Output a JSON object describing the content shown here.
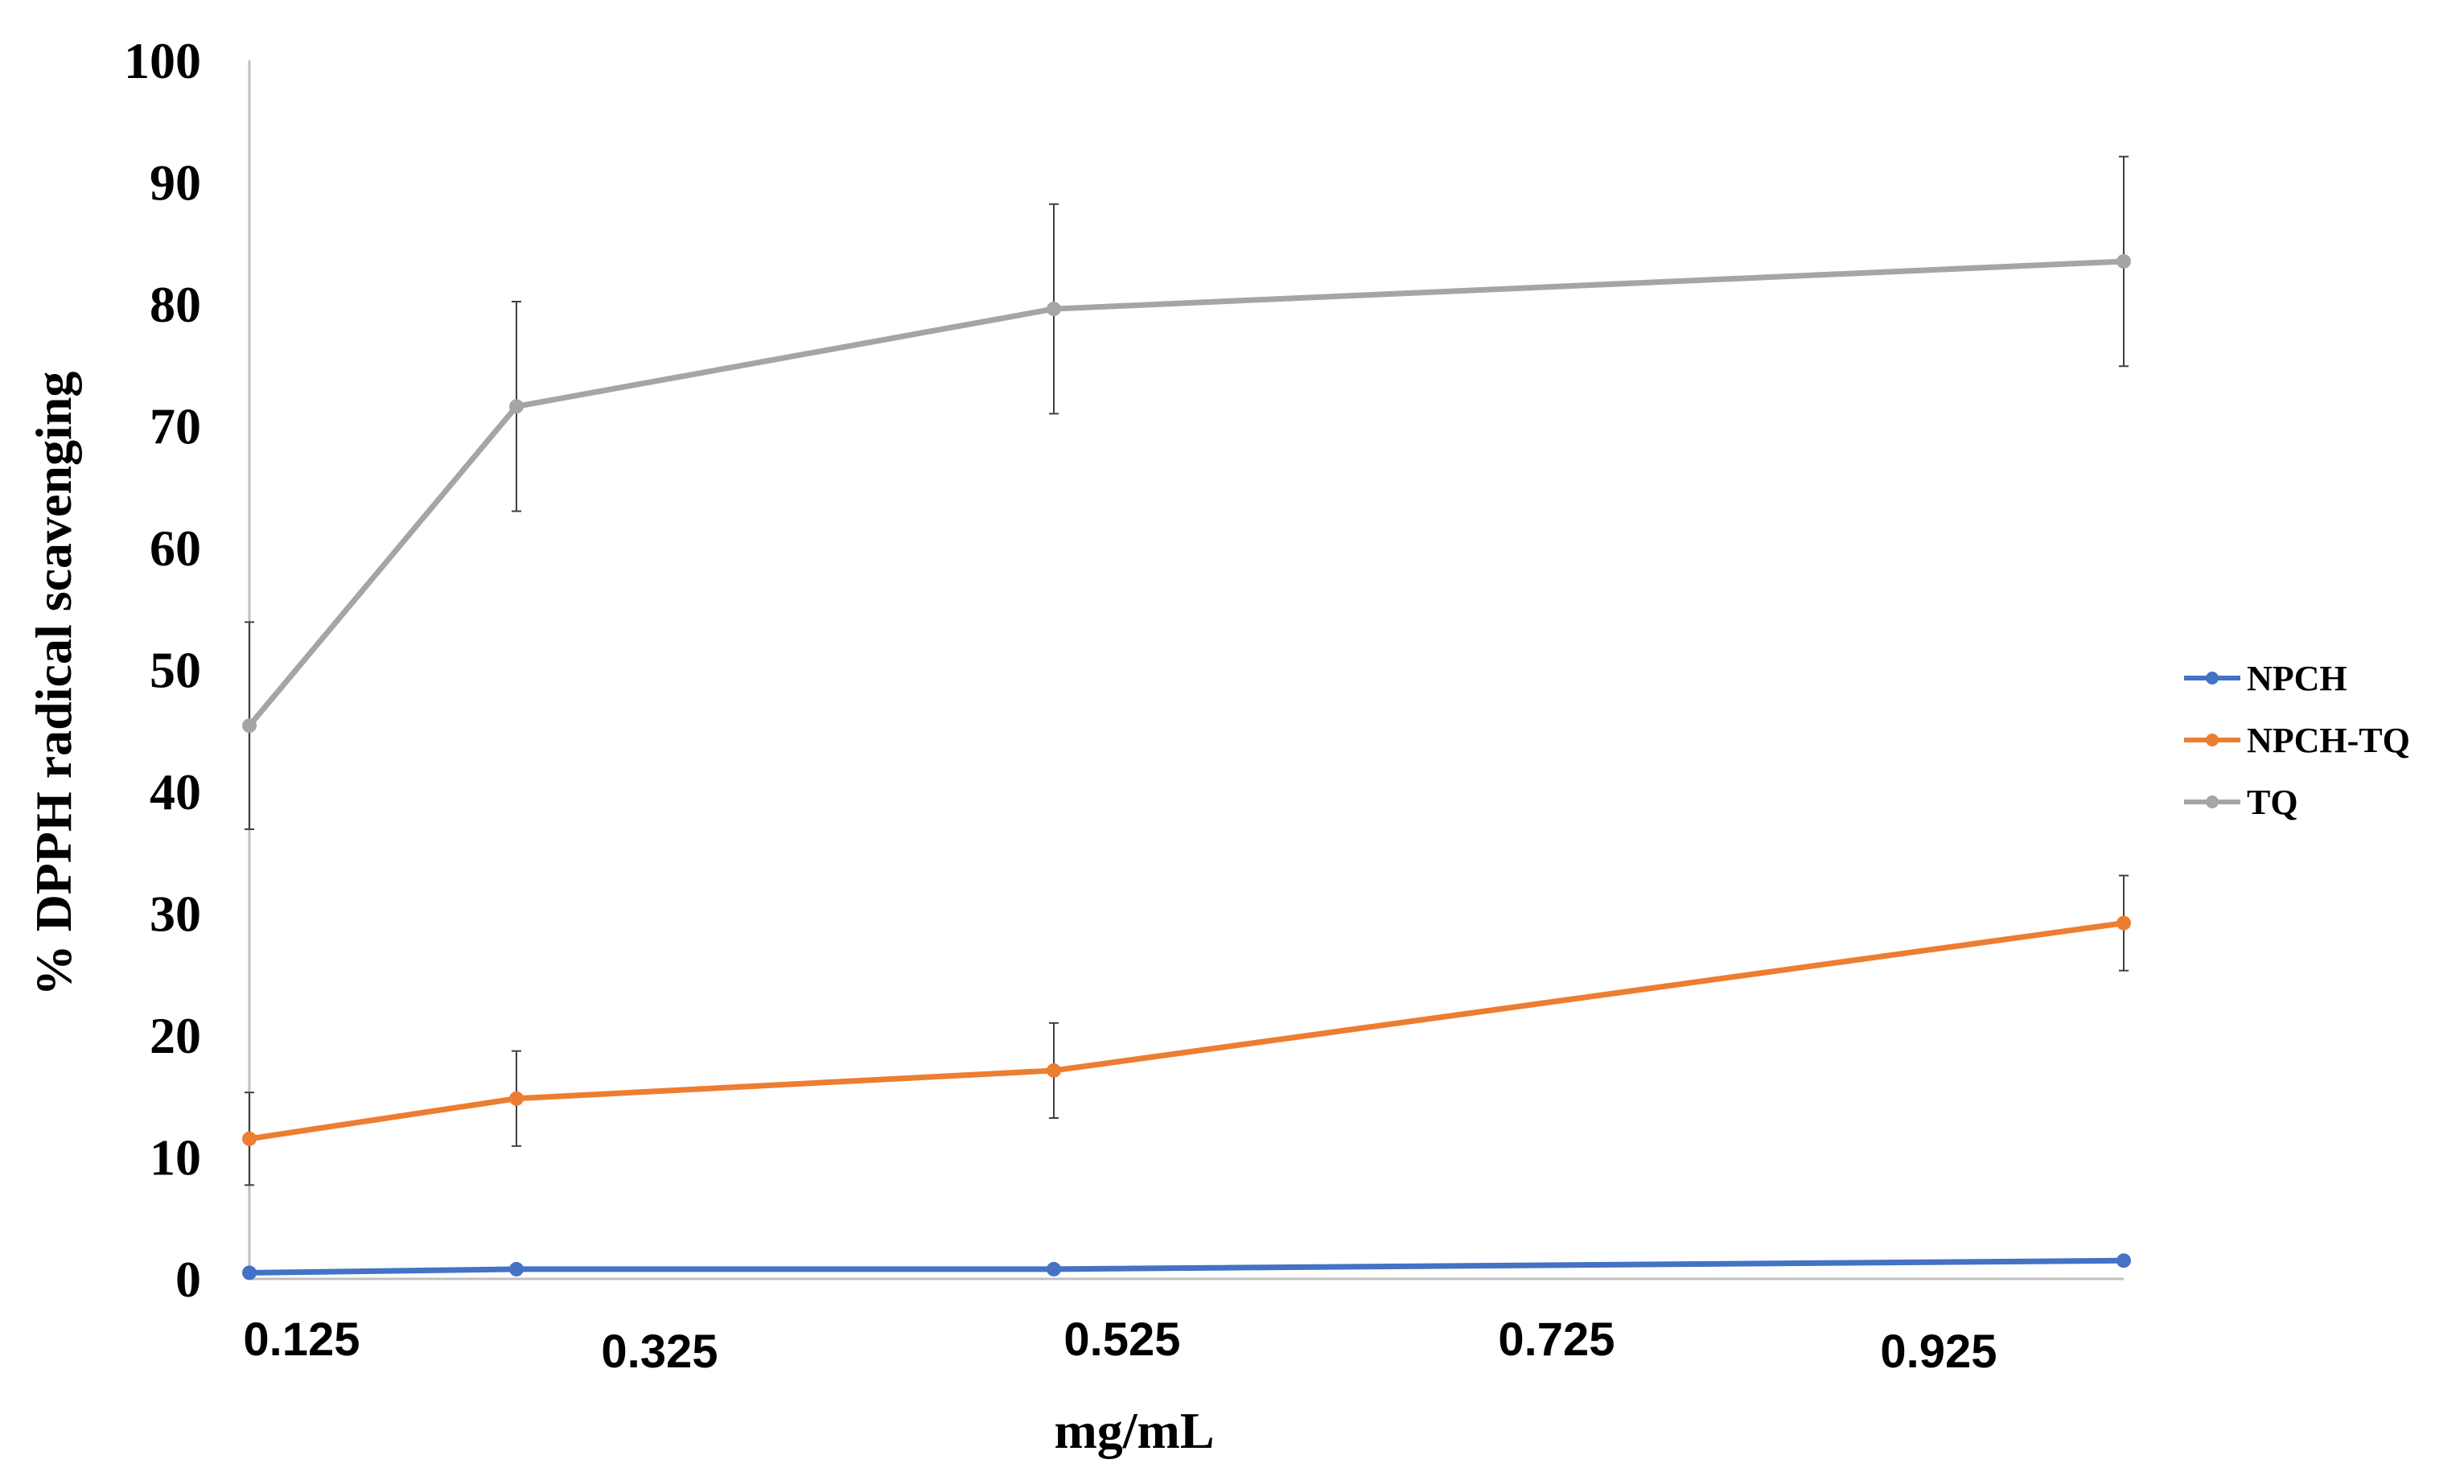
{
  "chart_data": {
    "type": "line",
    "x": [
      0.125,
      0.325,
      0.525,
      0.925
    ],
    "xlabel": "mg/mL",
    "ylabel": "% DPPH radical scavenging",
    "ylim": [
      0,
      100
    ],
    "y_ticks": [
      "0",
      "10",
      "20",
      "30",
      "40",
      "50",
      "60",
      "70",
      "80",
      "90",
      "100"
    ],
    "x_tick_labels": [
      "0.125",
      "0.325",
      "0.525",
      "0.725",
      "0.925"
    ],
    "grid": false,
    "legend_position": "right",
    "series": [
      {
        "name": "NPCH",
        "color": "#4472C4",
        "values": [
          0.5,
          0.8,
          0.8,
          1.5
        ],
        "errors": [
          0,
          0,
          0,
          0
        ]
      },
      {
        "name": "NPCH-TQ",
        "color": "#ED7D31",
        "values": [
          11.5,
          14.8,
          17.1,
          29.2
        ],
        "errors": [
          3.8,
          3.9,
          3.9,
          3.9
        ]
      },
      {
        "name": "TQ",
        "color": "#A5A5A5",
        "values": [
          45.4,
          71.6,
          79.6,
          83.5
        ],
        "errors": [
          8.5,
          8.6,
          8.6,
          8.6
        ]
      }
    ]
  },
  "colors": {
    "axis": "#BFBFBF",
    "error_bar": "#404040",
    "text": "#000000"
  }
}
